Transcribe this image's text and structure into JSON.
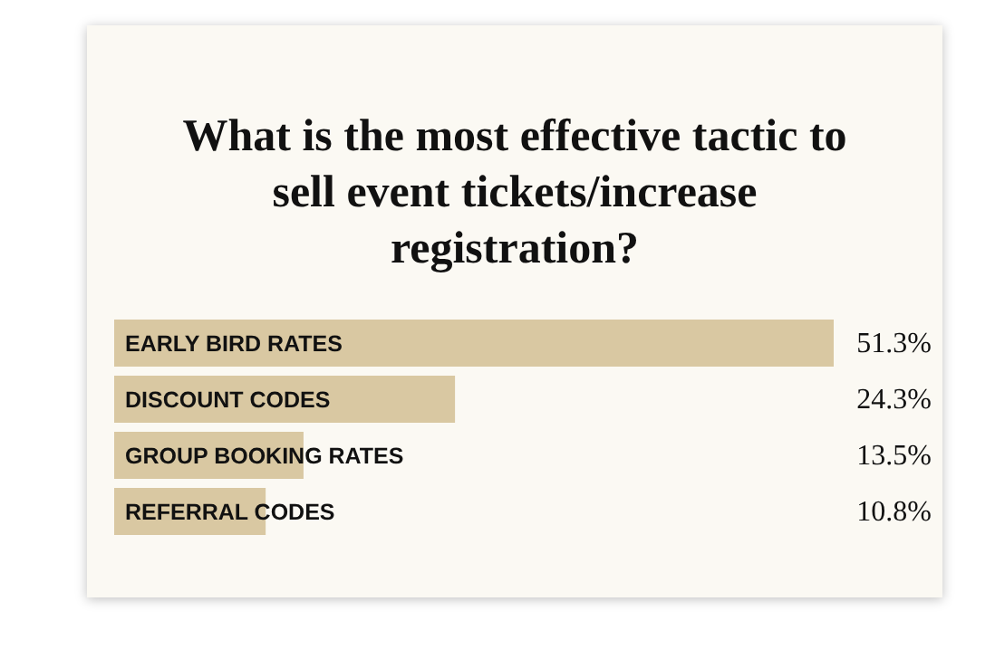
{
  "chart_data": {
    "type": "bar",
    "orientation": "horizontal",
    "title": "What is the most effective tactic to sell event tickets/increase registration?",
    "categories": [
      "EARLY BIRD RATES",
      "DISCOUNT CODES",
      "GROUP BOOKING RATES",
      "REFERRAL CODES"
    ],
    "values": [
      51.3,
      24.3,
      13.5,
      10.8
    ],
    "value_labels": [
      "51.3%",
      "24.3%",
      "13.5%",
      "10.8%"
    ],
    "color": "#d9c8a2"
  }
}
